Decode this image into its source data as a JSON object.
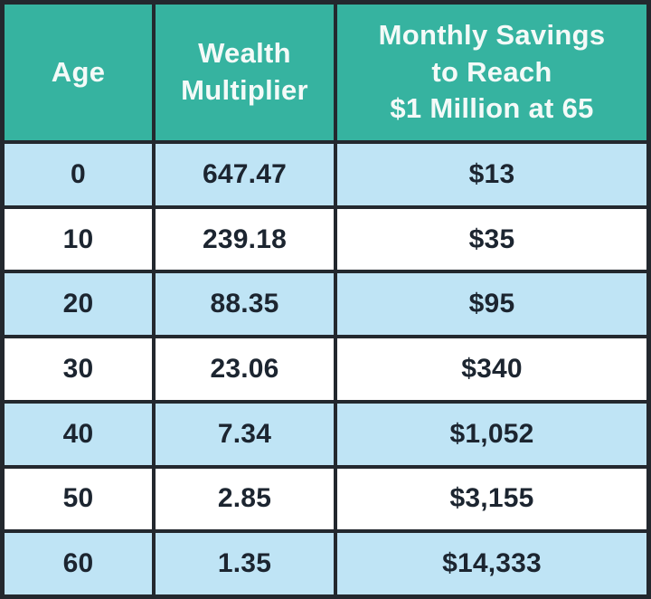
{
  "table": {
    "headers": [
      "Age",
      "Wealth\nMultiplier",
      "Monthly Savings\nto Reach\n$1 Million at 65"
    ],
    "rows": [
      {
        "age": "0",
        "multiplier": "647.47",
        "savings": "$13"
      },
      {
        "age": "10",
        "multiplier": "239.18",
        "savings": "$35"
      },
      {
        "age": "20",
        "multiplier": "88.35",
        "savings": "$95"
      },
      {
        "age": "30",
        "multiplier": "23.06",
        "savings": "$340"
      },
      {
        "age": "40",
        "multiplier": "7.34",
        "savings": "$1,052"
      },
      {
        "age": "50",
        "multiplier": "2.85",
        "savings": "$3,155"
      },
      {
        "age": "60",
        "multiplier": "1.35",
        "savings": "$14,333"
      }
    ],
    "colors": {
      "header_bg": "#36b3a0",
      "header_text": "#f4faf8",
      "row_alt_bg": "#bfe4f5",
      "row_bg": "#ffffff",
      "border": "#23282e",
      "body_text": "#1c2530"
    }
  },
  "chart_data": {
    "type": "table",
    "title": "",
    "columns": [
      "Age",
      "Wealth Multiplier",
      "Monthly Savings to Reach $1 Million at 65"
    ],
    "rows": [
      [
        0,
        647.47,
        "$13"
      ],
      [
        10,
        239.18,
        "$35"
      ],
      [
        20,
        88.35,
        "$95"
      ],
      [
        30,
        23.06,
        "$340"
      ],
      [
        40,
        7.34,
        "$1,052"
      ],
      [
        50,
        2.85,
        "$3,155"
      ],
      [
        60,
        1.35,
        "$14,333"
      ]
    ]
  }
}
